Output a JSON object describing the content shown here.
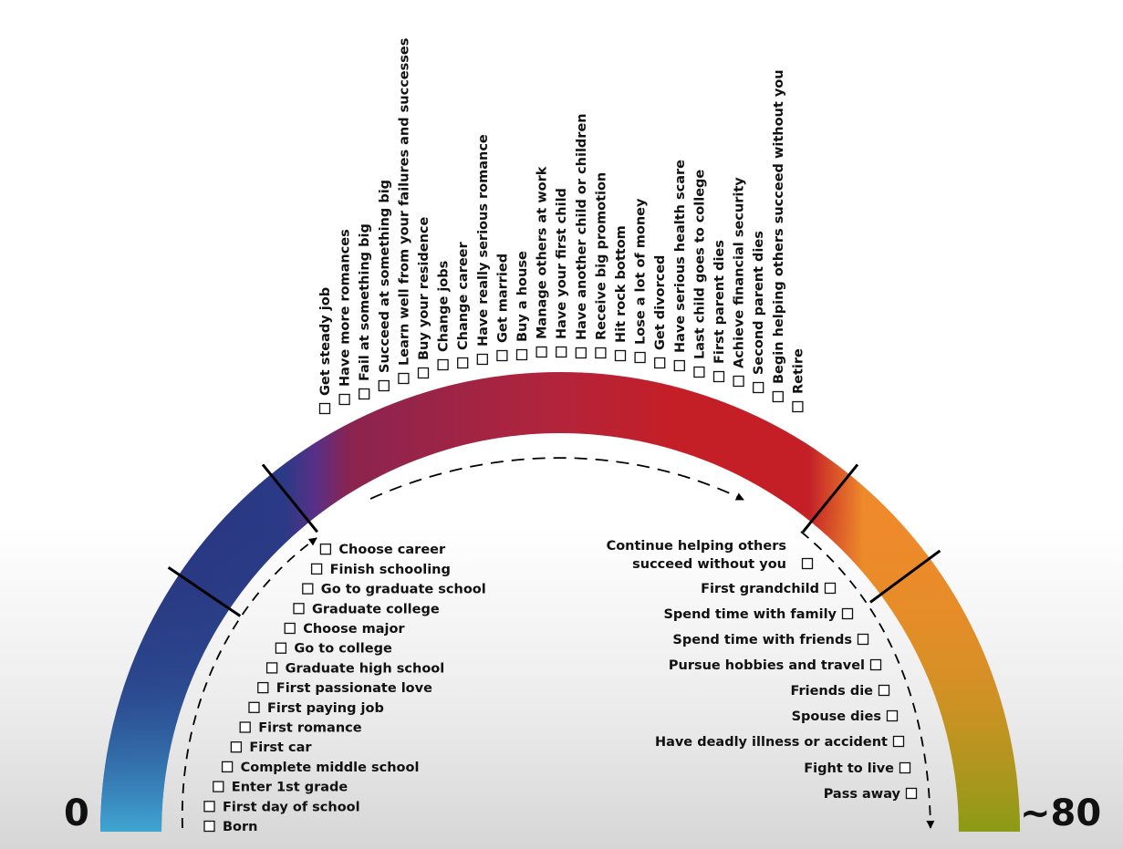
{
  "scale": {
    "start": "0",
    "end": "~80"
  },
  "colors": {
    "childhood_blue": "#27357d",
    "childhood_light": "#3fa6d2",
    "middle_purple": "#8a2450",
    "middle_red": "#c41f27",
    "late_orange": "#ee8a2b",
    "late_olive": "#8a9b16"
  },
  "early_life": [
    "Born",
    "First day of school",
    "Enter 1st grade",
    "Complete middle school",
    "First car",
    "First romance",
    "First paying job",
    "First passionate love",
    "Graduate high school",
    "Go to college",
    "Choose major",
    "Graduate college",
    "Go to graduate school",
    "Finish schooling",
    "Choose career"
  ],
  "middle_life": [
    "Get steady job",
    "Have more romances",
    "Fail at something big",
    "Succeed at something big",
    "Learn well from your failures and successes",
    "Buy your residence",
    "Change jobs",
    "Change career",
    "Have really serious romance",
    "Get married",
    "Buy a house",
    "Manage others at work",
    "Have your first child",
    "Have another child or children",
    "Receive big promotion",
    "Hit rock bottom",
    "Lose a lot of money",
    "Get divorced",
    "Have serious health scare",
    "Last child goes to college",
    "First parent dies",
    "Achieve financial security",
    "Second parent dies",
    "Begin helping others succeed without you",
    "Retire"
  ],
  "late_life": [
    "Continue helping others",
    "succeed without you",
    "First grandchild",
    "Spend time with family",
    "Spend time with friends",
    "Pursue hobbies and travel",
    "Friends die",
    "Spouse dies",
    "Have deadly illness or accident",
    "Fight to live",
    "Pass away"
  ]
}
